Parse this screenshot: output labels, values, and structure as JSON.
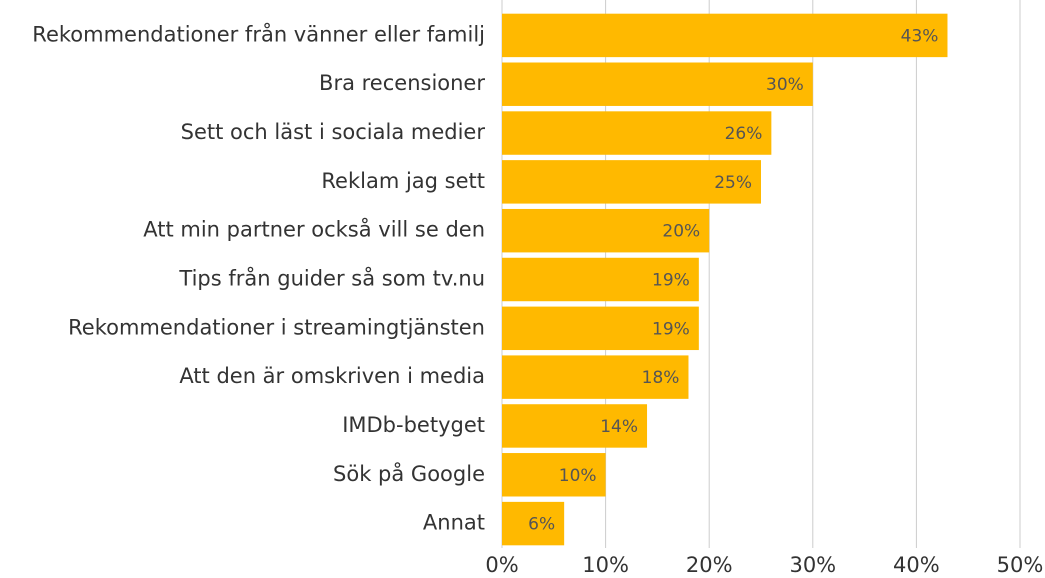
{
  "chart_data": {
    "type": "bar",
    "orientation": "horizontal",
    "categories": [
      "Rekommendationer från vänner eller familj",
      "Bra recensioner",
      "Sett och läst i sociala medier",
      "Reklam jag sett",
      "Att min partner också vill se den",
      "Tips från guider så som tv.nu",
      "Rekommendationer i streamingtjänsten",
      "Att den är omskriven i media",
      "IMDb-betyget",
      "Sök på Google",
      "Annat"
    ],
    "values": [
      43,
      30,
      26,
      25,
      20,
      19,
      19,
      18,
      14,
      10,
      6
    ],
    "value_labels": [
      "43%",
      "30%",
      "26%",
      "25%",
      "20%",
      "19%",
      "19%",
      "18%",
      "14%",
      "10%",
      "6%"
    ],
    "color": "#ffb900",
    "xlim": [
      0,
      50
    ],
    "xticks": [
      {
        "value": 0,
        "label": "0%"
      },
      {
        "value": 10,
        "label": "10%"
      },
      {
        "value": 20,
        "label": "20%"
      },
      {
        "value": 30,
        "label": "30%"
      },
      {
        "value": 40,
        "label": "40%"
      },
      {
        "value": 50,
        "label": "50%"
      }
    ],
    "grid": true
  }
}
